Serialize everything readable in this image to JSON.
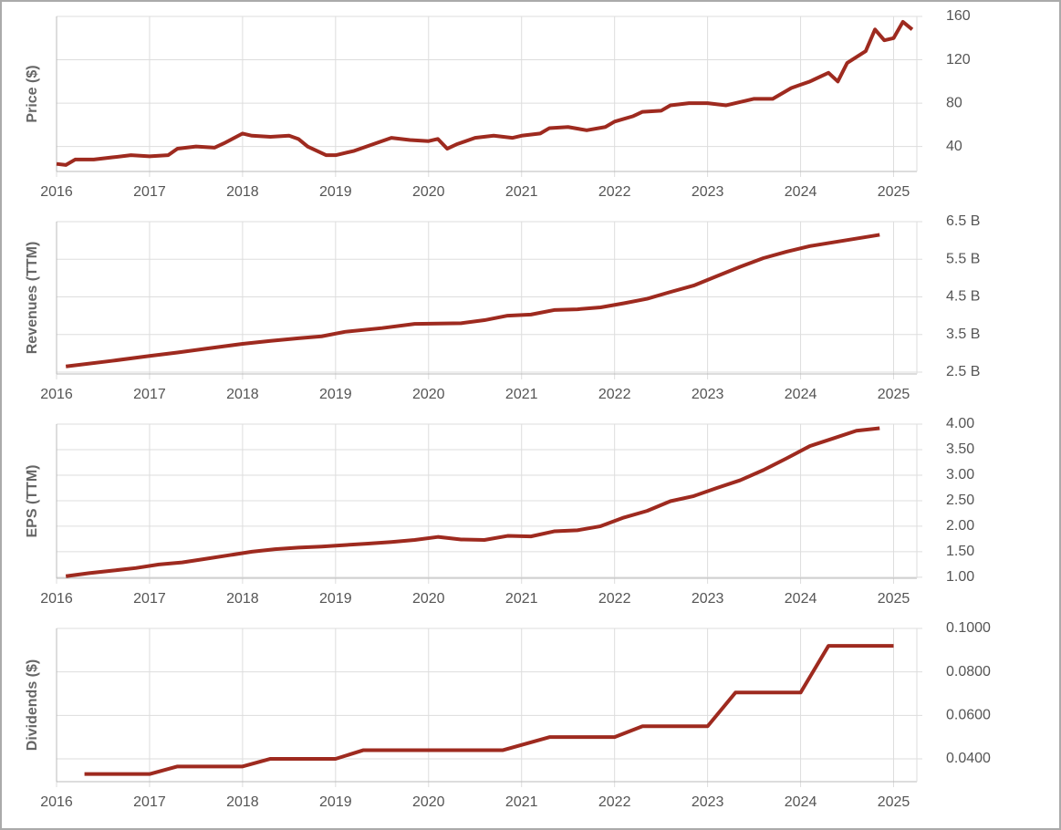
{
  "chart_data": [
    {
      "type": "line",
      "y_label": "Price ($)",
      "color": "#9e2a1f",
      "grid": true,
      "x": [
        2016.0,
        2016.1,
        2016.2,
        2016.4,
        2016.6,
        2016.8,
        2017.0,
        2017.2,
        2017.3,
        2017.5,
        2017.7,
        2017.8,
        2018.0,
        2018.1,
        2018.3,
        2018.5,
        2018.6,
        2018.7,
        2018.9,
        2019.0,
        2019.2,
        2019.4,
        2019.6,
        2019.8,
        2020.0,
        2020.1,
        2020.2,
        2020.3,
        2020.5,
        2020.7,
        2020.9,
        2021.0,
        2021.2,
        2021.3,
        2021.5,
        2021.7,
        2021.9,
        2022.0,
        2022.2,
        2022.3,
        2022.5,
        2022.6,
        2022.8,
        2023.0,
        2023.2,
        2023.4,
        2023.5,
        2023.7,
        2023.9,
        2024.0,
        2024.1,
        2024.3,
        2024.4,
        2024.5,
        2024.7,
        2024.8,
        2024.9,
        2025.0,
        2025.1,
        2025.2
      ],
      "values": [
        24,
        23,
        28,
        28,
        30,
        32,
        31,
        32,
        38,
        40,
        39,
        43,
        52,
        50,
        49,
        50,
        47,
        40,
        32,
        32,
        36,
        42,
        48,
        46,
        45,
        47,
        38,
        42,
        48,
        50,
        48,
        50,
        52,
        57,
        58,
        55,
        58,
        63,
        68,
        72,
        73,
        78,
        80,
        80,
        78,
        82,
        84,
        84,
        94,
        97,
        100,
        108,
        100,
        117,
        128,
        148,
        138,
        140,
        155,
        148
      ],
      "xlim": [
        2016,
        2025.25
      ],
      "xticks": [
        2016,
        2017,
        2018,
        2019,
        2020,
        2021,
        2022,
        2023,
        2024,
        2025
      ],
      "ylim": [
        17,
        160
      ],
      "yticks": [
        40,
        80,
        120,
        160
      ]
    },
    {
      "type": "line",
      "y_label": "Revenues (TTM)",
      "color": "#9e2a1f",
      "grid": true,
      "x": [
        2016.1,
        2016.6,
        2017.0,
        2017.3,
        2017.6,
        2018.0,
        2018.3,
        2018.6,
        2018.85,
        2019.1,
        2019.5,
        2019.85,
        2020.35,
        2020.6,
        2020.85,
        2021.1,
        2021.35,
        2021.6,
        2021.85,
        2022.1,
        2022.35,
        2022.6,
        2022.85,
        2023.1,
        2023.35,
        2023.6,
        2023.85,
        2024.1,
        2024.35,
        2024.6,
        2024.85
      ],
      "values": [
        2.65,
        2.8,
        2.93,
        3.02,
        3.12,
        3.25,
        3.33,
        3.4,
        3.45,
        3.57,
        3.67,
        3.78,
        3.8,
        3.88,
        4.0,
        4.03,
        4.15,
        4.17,
        4.22,
        4.33,
        4.45,
        4.63,
        4.8,
        5.05,
        5.3,
        5.53,
        5.7,
        5.85,
        5.95,
        6.05,
        6.15
      ],
      "xlim": [
        2016,
        2025.25
      ],
      "xticks": [
        2016,
        2017,
        2018,
        2019,
        2020,
        2021,
        2022,
        2023,
        2024,
        2025
      ],
      "ylim": [
        2.45,
        6.5
      ],
      "yticks": [
        {
          "value": 2.5,
          "label": "2.5 B"
        },
        {
          "value": 3.5,
          "label": "3.5 B"
        },
        {
          "value": 4.5,
          "label": "4.5 B"
        },
        {
          "value": 5.5,
          "label": "5.5 B"
        },
        {
          "value": 6.5,
          "label": "6.5 B"
        }
      ]
    },
    {
      "type": "line",
      "y_label": "EPS (TTM)",
      "color": "#9e2a1f",
      "grid": true,
      "x": [
        2016.1,
        2016.35,
        2016.6,
        2016.85,
        2017.1,
        2017.35,
        2017.6,
        2017.85,
        2018.1,
        2018.35,
        2018.6,
        2018.85,
        2019.1,
        2019.35,
        2019.6,
        2019.85,
        2020.1,
        2020.35,
        2020.6,
        2020.85,
        2021.1,
        2021.35,
        2021.6,
        2021.85,
        2022.1,
        2022.35,
        2022.6,
        2022.85,
        2023.1,
        2023.35,
        2023.6,
        2023.85,
        2024.1,
        2024.35,
        2024.6,
        2024.85
      ],
      "values": [
        1.02,
        1.08,
        1.13,
        1.18,
        1.25,
        1.29,
        1.36,
        1.43,
        1.5,
        1.55,
        1.58,
        1.6,
        1.63,
        1.66,
        1.69,
        1.73,
        1.79,
        1.74,
        1.73,
        1.81,
        1.8,
        1.9,
        1.92,
        2.0,
        2.17,
        2.3,
        2.49,
        2.59,
        2.75,
        2.9,
        3.1,
        3.33,
        3.57,
        3.72,
        3.87,
        3.92
      ],
      "xlim": [
        2016,
        2025.25
      ],
      "xticks": [
        2016,
        2017,
        2018,
        2019,
        2020,
        2021,
        2022,
        2023,
        2024,
        2025
      ],
      "ylim": [
        0.98,
        4.0
      ],
      "yticks": [
        {
          "value": 1,
          "label": "1.00"
        },
        {
          "value": 1.5,
          "label": "1.50"
        },
        {
          "value": 2,
          "label": "2.00"
        },
        {
          "value": 2.5,
          "label": "2.50"
        },
        {
          "value": 3,
          "label": "3.00"
        },
        {
          "value": 3.5,
          "label": "3.50"
        },
        {
          "value": 4,
          "label": "4.00"
        }
      ]
    },
    {
      "type": "line",
      "y_label": "Dividends ($)",
      "color": "#9e2a1f",
      "grid": true,
      "x": [
        2016.3,
        2017.0,
        2017.3,
        2018.0,
        2018.3,
        2019.0,
        2019.3,
        2020.8,
        2021.3,
        2022.0,
        2022.3,
        2023.0,
        2023.3,
        2024.0,
        2024.3,
        2025.0
      ],
      "values": [
        0.033,
        0.033,
        0.0365,
        0.0365,
        0.04,
        0.04,
        0.044,
        0.044,
        0.05,
        0.05,
        0.055,
        0.055,
        0.0705,
        0.0705,
        0.092,
        0.092
      ],
      "xlim": [
        2016,
        2025.25
      ],
      "xticks": [
        2016,
        2017,
        2018,
        2019,
        2020,
        2021,
        2022,
        2023,
        2024,
        2025
      ],
      "ylim": [
        0.0295,
        0.1
      ],
      "yticks": [
        {
          "value": 0.04,
          "label": "0.0400"
        },
        {
          "value": 0.06,
          "label": "0.0600"
        },
        {
          "value": 0.08,
          "label": "0.0800"
        },
        {
          "value": 0.1,
          "label": "0.1000"
        }
      ]
    }
  ]
}
